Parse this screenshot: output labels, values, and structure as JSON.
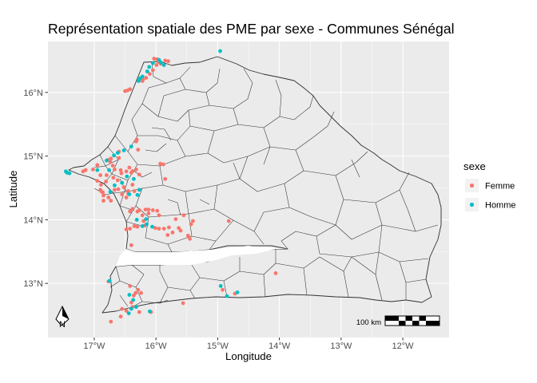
{
  "chart_data": {
    "type": "scatter",
    "title": "Représentation spatiale des PME par sexe - Communes Sénégal",
    "xlabel": "Longitude",
    "ylabel": "Latitude",
    "xlim": [
      -17.75,
      -11.25
    ],
    "ylim": [
      12.15,
      16.8
    ],
    "grid": true,
    "x_ticks": [
      {
        "value": -17,
        "label": "17°W"
      },
      {
        "value": -16,
        "label": "16°W"
      },
      {
        "value": -15,
        "label": "15°W"
      },
      {
        "value": -14,
        "label": "14°W"
      },
      {
        "value": -13,
        "label": "13°W"
      },
      {
        "value": -12,
        "label": "12°W"
      }
    ],
    "y_ticks": [
      {
        "value": 13,
        "label": "13°N"
      },
      {
        "value": 14,
        "label": "14°N"
      },
      {
        "value": 15,
        "label": "15°N"
      },
      {
        "value": 16,
        "label": "16°N"
      }
    ],
    "legend": {
      "title": "sexe",
      "position": "right"
    },
    "series": [
      {
        "name": "Femme",
        "color": "#F8766D",
        "points": [
          [
            -16.03,
            16.53
          ],
          [
            -15.98,
            16.52
          ],
          [
            -15.96,
            16.48
          ],
          [
            -15.92,
            16.45
          ],
          [
            -15.85,
            16.5
          ],
          [
            -15.8,
            16.49
          ],
          [
            -15.99,
            16.43
          ],
          [
            -16.05,
            16.35
          ],
          [
            -16.1,
            16.29
          ],
          [
            -16.16,
            16.23
          ],
          [
            -16.21,
            16.2
          ],
          [
            -16.22,
            16.18
          ],
          [
            -16.42,
            16.05
          ],
          [
            -16.46,
            16.03
          ],
          [
            -16.5,
            16.02
          ],
          [
            -16.31,
            15.26
          ],
          [
            -16.32,
            15.23
          ],
          [
            -16.29,
            15.1
          ],
          [
            -16.6,
            15.07
          ],
          [
            -16.78,
            14.94
          ],
          [
            -16.74,
            14.91
          ],
          [
            -16.95,
            14.86
          ],
          [
            -17.02,
            14.79
          ],
          [
            -17.14,
            14.78
          ],
          [
            -17.18,
            14.76
          ],
          [
            -16.6,
            14.97
          ],
          [
            -16.73,
            14.96
          ],
          [
            -16.7,
            14.85
          ],
          [
            -16.67,
            14.79
          ],
          [
            -16.57,
            14.78
          ],
          [
            -16.56,
            14.73
          ],
          [
            -16.48,
            14.76
          ],
          [
            -16.4,
            14.74
          ],
          [
            -16.38,
            14.76
          ],
          [
            -16.32,
            14.79
          ],
          [
            -16.27,
            14.71
          ],
          [
            -16.43,
            14.82
          ],
          [
            -16.95,
            14.61
          ],
          [
            -16.89,
            14.55
          ],
          [
            -16.9,
            14.7
          ],
          [
            -16.8,
            14.7
          ],
          [
            -16.81,
            14.6
          ],
          [
            -16.69,
            14.66
          ],
          [
            -16.62,
            14.62
          ],
          [
            -16.61,
            14.48
          ],
          [
            -16.55,
            14.4
          ],
          [
            -16.67,
            14.47
          ],
          [
            -16.52,
            14.51
          ],
          [
            -16.45,
            14.41
          ],
          [
            -16.48,
            14.35
          ],
          [
            -16.45,
            14.45
          ],
          [
            -16.38,
            14.55
          ],
          [
            -16.35,
            14.45
          ],
          [
            -16.9,
            14.47
          ],
          [
            -16.88,
            14.44
          ],
          [
            -16.85,
            14.38
          ],
          [
            -16.77,
            14.35
          ],
          [
            -16.85,
            14.3
          ],
          [
            -16.86,
            14.43
          ],
          [
            -16.73,
            14.3
          ],
          [
            -15.93,
            14.88
          ],
          [
            -15.88,
            14.87
          ],
          [
            -15.85,
            14.64
          ],
          [
            -16.17,
            14.16
          ],
          [
            -16.12,
            14.16
          ],
          [
            -16.12,
            14.1
          ],
          [
            -16.05,
            14.15
          ],
          [
            -15.98,
            14.14
          ],
          [
            -15.95,
            14.07
          ],
          [
            -16.42,
            14.13
          ],
          [
            -16.3,
            14.13
          ],
          [
            -16.27,
            14.15
          ],
          [
            -16.22,
            14.07
          ],
          [
            -16.2,
            13.98
          ],
          [
            -16.18,
            13.91
          ],
          [
            -16.35,
            13.9
          ],
          [
            -16.42,
            13.86
          ],
          [
            -16.48,
            13.85
          ],
          [
            -16.3,
            13.89
          ],
          [
            -16.01,
            13.87
          ],
          [
            -15.95,
            13.86
          ],
          [
            -15.87,
            13.86
          ],
          [
            -15.79,
            13.88
          ],
          [
            -15.81,
            13.76
          ],
          [
            -15.73,
            13.8
          ],
          [
            -15.63,
            13.87
          ],
          [
            -15.6,
            13.83
          ],
          [
            -15.4,
            13.98
          ],
          [
            -15.43,
            13.93
          ],
          [
            -15.48,
            13.75
          ],
          [
            -15.45,
            13.7
          ],
          [
            -15.55,
            14.07
          ],
          [
            -15.68,
            14.01
          ],
          [
            -16.38,
            14.17
          ],
          [
            -16.4,
            13.6
          ],
          [
            -14.82,
            13.98
          ],
          [
            -14.06,
            13.16
          ],
          [
            -14.72,
            12.84
          ],
          [
            -16.77,
            13.03
          ],
          [
            -16.42,
            12.96
          ],
          [
            -16.29,
            12.9
          ],
          [
            -16.24,
            12.85
          ],
          [
            -16.33,
            12.85
          ],
          [
            -16.36,
            12.81
          ],
          [
            -16.38,
            12.63
          ],
          [
            -16.27,
            12.55
          ],
          [
            -16.4,
            12.7
          ],
          [
            -16.48,
            12.57
          ],
          [
            -16.57,
            12.48
          ],
          [
            -16.55,
            12.6
          ],
          [
            -16.73,
            12.4
          ],
          [
            -16.08,
            12.55
          ],
          [
            -15.56,
            12.69
          ],
          [
            -14.92,
            12.9
          ]
        ]
      },
      {
        "name": "Homme",
        "color": "#00BFC4",
        "points": [
          [
            -14.96,
            16.65
          ],
          [
            -15.95,
            16.51
          ],
          [
            -15.92,
            16.47
          ],
          [
            -15.87,
            16.43
          ],
          [
            -16.05,
            16.46
          ],
          [
            -16.11,
            16.4
          ],
          [
            -16.14,
            16.33
          ],
          [
            -16.22,
            16.25
          ],
          [
            -16.26,
            16.22
          ],
          [
            -16.28,
            16.18
          ],
          [
            -17.44,
            14.74
          ],
          [
            -17.46,
            14.76
          ],
          [
            -17.4,
            14.73
          ],
          [
            -16.76,
            14.78
          ],
          [
            -16.8,
            14.93
          ],
          [
            -16.68,
            15.01
          ],
          [
            -16.62,
            15.05
          ],
          [
            -16.52,
            15.09
          ],
          [
            -16.4,
            15.15
          ],
          [
            -16.95,
            14.78
          ],
          [
            -16.74,
            14.44
          ],
          [
            -16.67,
            14.54
          ],
          [
            -16.47,
            14.68
          ],
          [
            -16.36,
            14.64
          ],
          [
            -16.55,
            14.58
          ],
          [
            -16.3,
            14.39
          ],
          [
            -16.27,
            14.47
          ],
          [
            -16.43,
            14.4
          ],
          [
            -16.06,
            13.89
          ],
          [
            -16.15,
            13.93
          ],
          [
            -16.31,
            14.0
          ],
          [
            -16.16,
            14.01
          ],
          [
            -16.22,
            13.9
          ],
          [
            -16.75,
            13.04
          ],
          [
            -16.43,
            12.82
          ],
          [
            -16.44,
            12.53
          ],
          [
            -16.4,
            12.6
          ],
          [
            -16.32,
            12.63
          ],
          [
            -16.37,
            12.74
          ],
          [
            -16.1,
            12.56
          ],
          [
            -14.95,
            12.96
          ],
          [
            -14.85,
            12.8
          ],
          [
            -14.68,
            12.86
          ]
        ]
      }
    ]
  },
  "scale_bar": {
    "label": "100 km"
  },
  "north_arrow": {
    "label": "N"
  }
}
